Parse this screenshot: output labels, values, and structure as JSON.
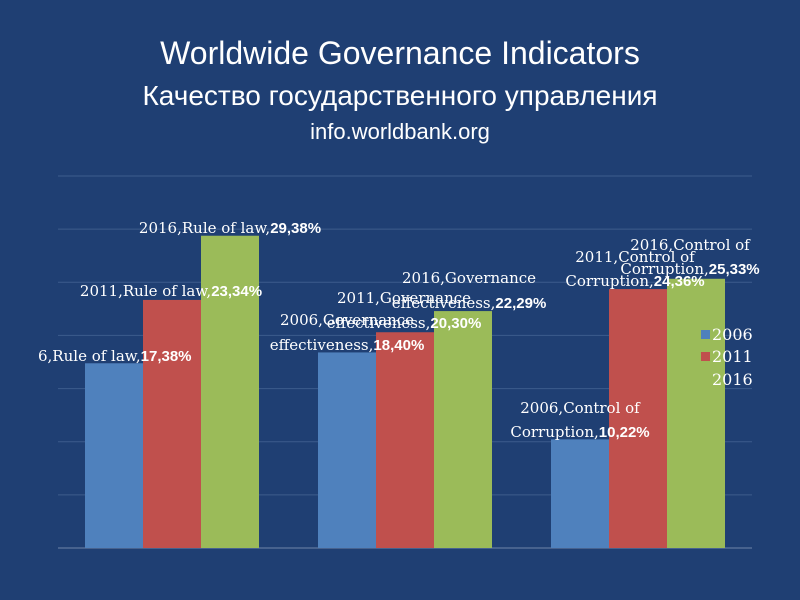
{
  "title": {
    "line1": "Worldwide Governance Indicators",
    "line2": "Качество государственного управления",
    "line3": "info.worldbank.org"
  },
  "chart_data": {
    "type": "bar",
    "categories": [
      "Rule of law",
      "Governance effectiveness",
      "Control of Corruption"
    ],
    "series": [
      {
        "name": "2006",
        "color": "#4f81bd",
        "values": [
          17.38,
          18.4,
          10.22
        ]
      },
      {
        "name": "2011",
        "color": "#c0504d",
        "values": [
          23.34,
          20.3,
          24.36
        ]
      },
      {
        "name": "2016",
        "color": "#9bbb59",
        "values": [
          29.38,
          22.29,
          25.33
        ]
      }
    ],
    "labels": [
      [
        [
          "6,Rule of law,",
          "17,38%"
        ],
        [
          "2006,Governance",
          "effectiveness,",
          "18,40%"
        ],
        [
          "2006,Control of",
          "Corruption,",
          "10,22%"
        ]
      ],
      [
        [
          "2011,Rule of law,",
          "23,34%"
        ],
        [
          "2011,Governance",
          "effectiveness,",
          "20,30%"
        ],
        [
          "2011,Control of",
          "Corruption,",
          "24,36%"
        ]
      ],
      [
        [
          "2016,Rule of law,",
          "29,38%"
        ],
        [
          "2016,Governance",
          "effectiveness,",
          "22,29%"
        ],
        [
          "2016,Control of",
          "Corruption,",
          "25,33%"
        ]
      ]
    ],
    "ylim": [
      0,
      35
    ],
    "grid": true,
    "legend": "right"
  }
}
